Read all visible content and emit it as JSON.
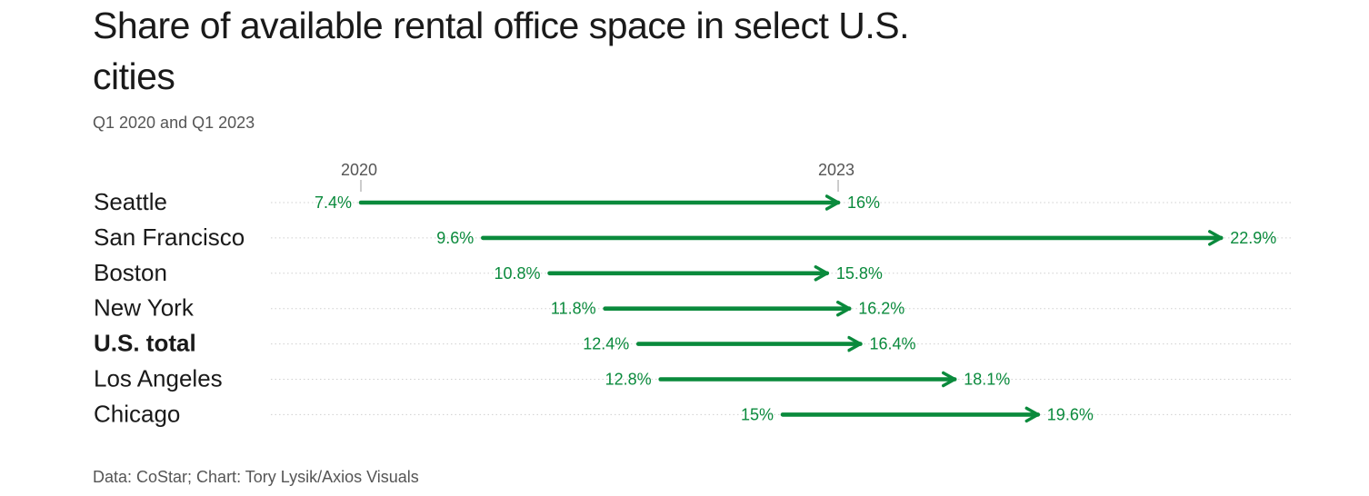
{
  "header": {
    "title": "Share of available rental office space in select U.S. cities",
    "subtitle": "Q1 2020 and Q1 2023"
  },
  "footer": {
    "source": "Data: CoStar; Chart: Tory Lysik/Axios Visuals"
  },
  "colors": {
    "arrow": "#0a8a3c",
    "gridline": "#d0d0d0"
  },
  "chart_data": {
    "type": "arrow",
    "title": "Share of available rental office space in select U.S. cities",
    "subtitle": "Q1 2020 and Q1 2023",
    "column_labels": [
      "2020",
      "2023"
    ],
    "reference_markers": [
      {
        "label": "2020",
        "value": 7.4
      },
      {
        "label": "2023",
        "value": 16
      }
    ],
    "xlim": [
      5.4,
      23.8
    ],
    "grid": "dotted horizontal row lines",
    "rows": [
      {
        "city": "Seattle",
        "start": 7.4,
        "end": 16,
        "start_label": "7.4%",
        "end_label": "16%",
        "bold": false
      },
      {
        "city": "San Francisco",
        "start": 9.6,
        "end": 22.9,
        "start_label": "9.6%",
        "end_label": "22.9%",
        "bold": false
      },
      {
        "city": "Boston",
        "start": 10.8,
        "end": 15.8,
        "start_label": "10.8%",
        "end_label": "15.8%",
        "bold": false
      },
      {
        "city": "New York",
        "start": 11.8,
        "end": 16.2,
        "start_label": "11.8%",
        "end_label": "16.2%",
        "bold": false
      },
      {
        "city": "U.S. total",
        "start": 12.4,
        "end": 16.4,
        "start_label": "12.4%",
        "end_label": "16.4%",
        "bold": true
      },
      {
        "city": "Los Angeles",
        "start": 12.8,
        "end": 18.1,
        "start_label": "12.8%",
        "end_label": "18.1%",
        "bold": false
      },
      {
        "city": "Chicago",
        "start": 15,
        "end": 19.6,
        "start_label": "15%",
        "end_label": "19.6%",
        "bold": false
      }
    ]
  }
}
